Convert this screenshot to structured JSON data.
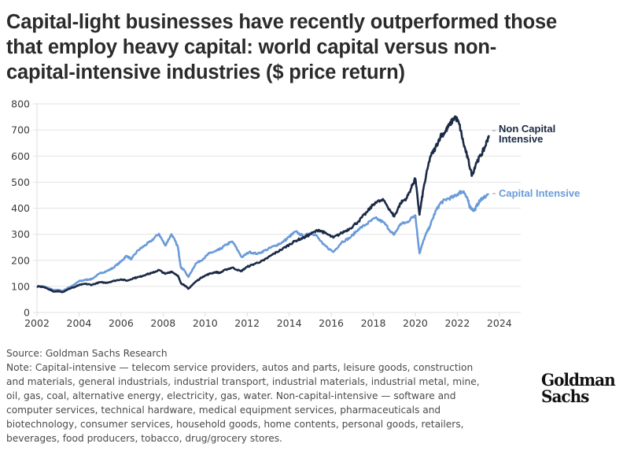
{
  "title_lines": [
    "Capital-light businesses have recently outperformed those",
    "that employ heavy capital: world capital versus non-",
    "capital-intensive industries ($ price return)"
  ],
  "chart_data": {
    "type": "line",
    "title": "Capital-light businesses have recently outperformed those that employ heavy capital: world capital versus non-capital-intensive industries ($ price return)",
    "xlabel": "",
    "ylabel": "",
    "xlim": [
      2002,
      2025
    ],
    "ylim": [
      0,
      800
    ],
    "x_ticks": [
      2002,
      2004,
      2006,
      2008,
      2010,
      2012,
      2014,
      2016,
      2018,
      2020,
      2022,
      2024
    ],
    "y_ticks": [
      0,
      100,
      200,
      300,
      400,
      500,
      600,
      700,
      800
    ],
    "grid": "horizontal",
    "legend": "right (direct labels at line ends)",
    "series": [
      {
        "name": "Non Capital Intensive",
        "color": "#1b2a45",
        "points": [
          [
            2002.0,
            100
          ],
          [
            2002.3,
            98
          ],
          [
            2002.6,
            88
          ],
          [
            2002.8,
            80
          ],
          [
            2003.0,
            82
          ],
          [
            2003.2,
            78
          ],
          [
            2003.5,
            90
          ],
          [
            2003.8,
            98
          ],
          [
            2004.0,
            105
          ],
          [
            2004.3,
            110
          ],
          [
            2004.6,
            106
          ],
          [
            2005.0,
            116
          ],
          [
            2005.3,
            114
          ],
          [
            2005.6,
            120
          ],
          [
            2006.0,
            127
          ],
          [
            2006.3,
            122
          ],
          [
            2006.6,
            132
          ],
          [
            2006.9,
            137
          ],
          [
            2007.2,
            146
          ],
          [
            2007.5,
            152
          ],
          [
            2007.8,
            163
          ],
          [
            2008.1,
            148
          ],
          [
            2008.4,
            157
          ],
          [
            2008.7,
            142
          ],
          [
            2008.85,
            112
          ],
          [
            2009.0,
            106
          ],
          [
            2009.2,
            91
          ],
          [
            2009.55,
            118
          ],
          [
            2009.9,
            138
          ],
          [
            2010.2,
            148
          ],
          [
            2010.5,
            155
          ],
          [
            2010.7,
            152
          ],
          [
            2011.0,
            165
          ],
          [
            2011.3,
            172
          ],
          [
            2011.7,
            158
          ],
          [
            2012.0,
            175
          ],
          [
            2012.4,
            188
          ],
          [
            2012.8,
            200
          ],
          [
            2013.2,
            222
          ],
          [
            2013.6,
            240
          ],
          [
            2014.0,
            260
          ],
          [
            2014.3,
            275
          ],
          [
            2014.7,
            287
          ],
          [
            2015.0,
            300
          ],
          [
            2015.4,
            317
          ],
          [
            2015.7,
            305
          ],
          [
            2016.1,
            287
          ],
          [
            2016.5,
            305
          ],
          [
            2016.9,
            323
          ],
          [
            2017.3,
            350
          ],
          [
            2017.7,
            385
          ],
          [
            2018.1,
            423
          ],
          [
            2018.5,
            430
          ],
          [
            2018.9,
            380
          ],
          [
            2019.0,
            368
          ],
          [
            2019.3,
            420
          ],
          [
            2019.6,
            440
          ],
          [
            2019.9,
            495
          ],
          [
            2020.0,
            513
          ],
          [
            2020.2,
            375
          ],
          [
            2020.4,
            480
          ],
          [
            2020.7,
            595
          ],
          [
            2020.95,
            630
          ],
          [
            2021.2,
            677
          ],
          [
            2021.4,
            690
          ],
          [
            2021.6,
            716
          ],
          [
            2021.9,
            752
          ],
          [
            2022.1,
            720
          ],
          [
            2022.3,
            646
          ],
          [
            2022.5,
            590
          ],
          [
            2022.7,
            525
          ],
          [
            2022.9,
            575
          ],
          [
            2023.1,
            600
          ],
          [
            2023.3,
            631
          ],
          [
            2023.5,
            680
          ]
        ]
      },
      {
        "name": "Capital Intensive",
        "color": "#6b9bd8",
        "points": [
          [
            2002.0,
            100
          ],
          [
            2002.3,
            100
          ],
          [
            2002.6,
            92
          ],
          [
            2002.8,
            85
          ],
          [
            2003.0,
            87
          ],
          [
            2003.2,
            82
          ],
          [
            2003.5,
            95
          ],
          [
            2003.8,
            108
          ],
          [
            2004.0,
            120
          ],
          [
            2004.3,
            125
          ],
          [
            2004.6,
            128
          ],
          [
            2005.0,
            150
          ],
          [
            2005.3,
            158
          ],
          [
            2005.6,
            170
          ],
          [
            2006.0,
            195
          ],
          [
            2006.25,
            217
          ],
          [
            2006.5,
            205
          ],
          [
            2006.8,
            238
          ],
          [
            2007.1,
            255
          ],
          [
            2007.4,
            272
          ],
          [
            2007.8,
            302
          ],
          [
            2008.1,
            257
          ],
          [
            2008.4,
            300
          ],
          [
            2008.7,
            253
          ],
          [
            2008.85,
            172
          ],
          [
            2009.0,
            163
          ],
          [
            2009.2,
            136
          ],
          [
            2009.55,
            187
          ],
          [
            2009.9,
            205
          ],
          [
            2010.2,
            227
          ],
          [
            2010.5,
            235
          ],
          [
            2010.7,
            242
          ],
          [
            2011.0,
            260
          ],
          [
            2011.3,
            272
          ],
          [
            2011.75,
            212
          ],
          [
            2012.1,
            232
          ],
          [
            2012.5,
            225
          ],
          [
            2012.9,
            240
          ],
          [
            2013.3,
            255
          ],
          [
            2013.7,
            270
          ],
          [
            2014.0,
            290
          ],
          [
            2014.3,
            310
          ],
          [
            2014.7,
            292
          ],
          [
            2015.0,
            305
          ],
          [
            2015.25,
            299
          ],
          [
            2015.6,
            262
          ],
          [
            2016.1,
            232
          ],
          [
            2016.5,
            270
          ],
          [
            2016.9,
            287
          ],
          [
            2017.3,
            320
          ],
          [
            2017.7,
            340
          ],
          [
            2018.1,
            362
          ],
          [
            2018.5,
            345
          ],
          [
            2018.9,
            305
          ],
          [
            2019.0,
            299
          ],
          [
            2019.3,
            340
          ],
          [
            2019.6,
            345
          ],
          [
            2019.9,
            368
          ],
          [
            2020.0,
            372
          ],
          [
            2020.2,
            227
          ],
          [
            2020.45,
            290
          ],
          [
            2020.7,
            332
          ],
          [
            2020.95,
            385
          ],
          [
            2021.2,
            420
          ],
          [
            2021.5,
            435
          ],
          [
            2021.85,
            444
          ],
          [
            2022.1,
            460
          ],
          [
            2022.3,
            465
          ],
          [
            2022.5,
            430
          ],
          [
            2022.6,
            405
          ],
          [
            2022.8,
            390
          ],
          [
            2023.0,
            420
          ],
          [
            2023.2,
            440
          ],
          [
            2023.5,
            453
          ]
        ]
      }
    ]
  },
  "legend": {
    "non_capital_intensive_line1": "Non Capital",
    "non_capital_intensive_line2": "Intensive",
    "capital_intensive": "Capital Intensive"
  },
  "footer": {
    "source": "Source: Goldman Sachs Research",
    "note_lines": [
      "Note: Capital-intensive — telecom service providers, autos and parts, leisure goods, construction",
      "and materials, general industrials, industrial transport, industrial materials, industrial metal, mine,",
      "oil, gas, coal, alternative energy, electricity, gas, water. Non-capital-intensive — software and",
      "computer services, technical hardware, medical equipment services, pharmaceuticals and",
      "biotechnology, consumer services, household goods, home contents, personal goods, retailers,",
      "beverages, food producers, tobacco, drug/grocery stores."
    ]
  },
  "logo": {
    "line1": "Goldman",
    "line2": "Sachs"
  }
}
